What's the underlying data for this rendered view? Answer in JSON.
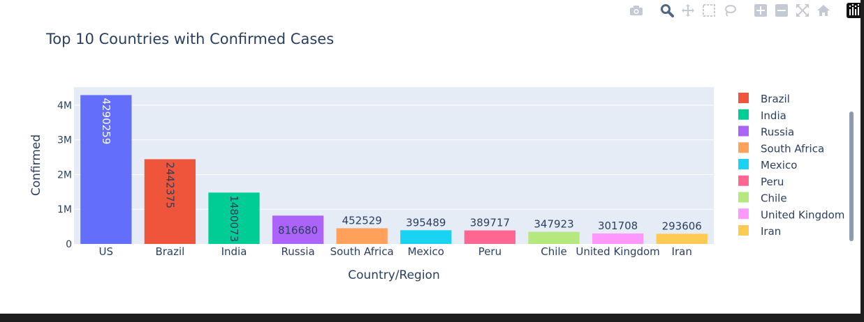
{
  "chart_data": {
    "type": "bar",
    "title": "Top 10 Countries with Confirmed Cases",
    "xlabel": "Country/Region",
    "ylabel": "Confirmed",
    "categories": [
      "US",
      "Brazil",
      "India",
      "Russia",
      "South Africa",
      "Mexico",
      "Peru",
      "Chile",
      "United Kingdom",
      "Iran"
    ],
    "values": [
      4290259,
      2442375,
      1480073,
      816680,
      452529,
      395489,
      389717,
      347923,
      301708,
      293606
    ],
    "colors": [
      "#636efa",
      "#ef553b",
      "#00cc96",
      "#ab63fa",
      "#ffa15a",
      "#19d3f3",
      "#ff6692",
      "#b6e880",
      "#ff97ff",
      "#fecb52"
    ],
    "yticks": [
      {
        "value": 0,
        "label": "0"
      },
      {
        "value": 1000000,
        "label": "1M"
      },
      {
        "value": 2000000,
        "label": "2M"
      },
      {
        "value": 3000000,
        "label": "3M"
      },
      {
        "value": 4000000,
        "label": "4M"
      }
    ],
    "ylim": [
      0,
      4520000
    ],
    "grid": true,
    "legend": {
      "placement": "right",
      "entries": [
        "Brazil",
        "India",
        "Russia",
        "South Africa",
        "Mexico",
        "Peru",
        "Chile",
        "United Kingdom",
        "Iran"
      ]
    }
  },
  "toolbar": {
    "buttons": [
      "camera-icon",
      "zoom-icon",
      "pan-icon",
      "box-select-icon",
      "lasso-icon",
      "zoom-in-icon",
      "zoom-out-icon",
      "autoscale-icon",
      "home-icon"
    ],
    "logo": "plotly-logo-icon"
  },
  "colors": {
    "plot_bg": "#e5ecf6",
    "paper_bg": "#ffffff",
    "text": "#2a3f5f",
    "grid": "#ffffff",
    "modebar_icon": "#c4cad4",
    "modebar_active": "#506784"
  }
}
